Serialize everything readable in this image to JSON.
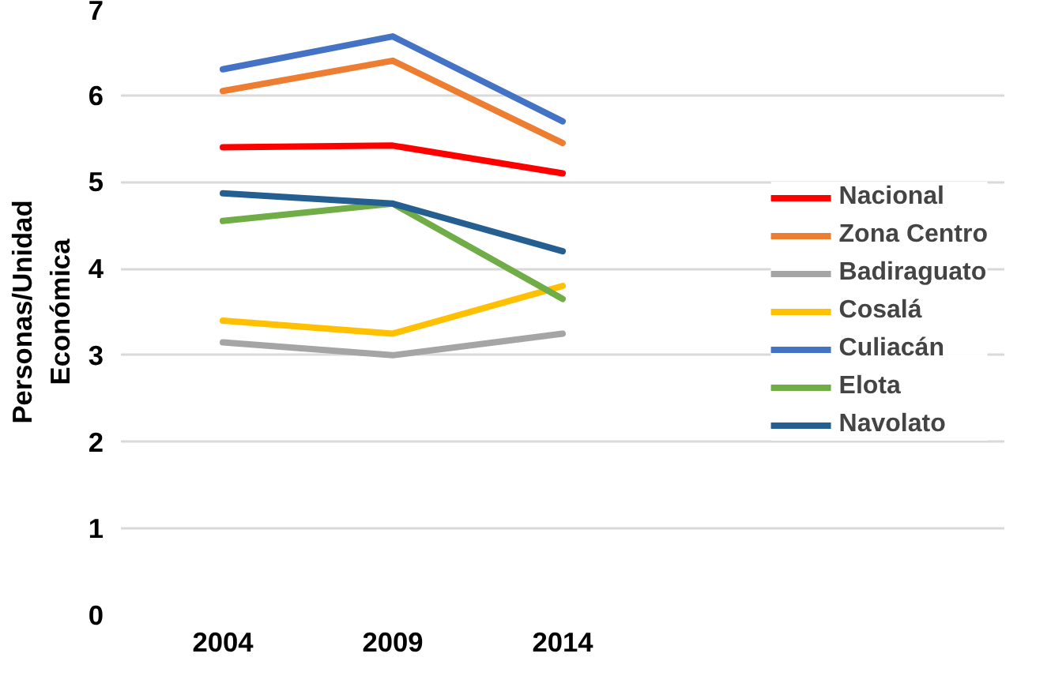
{
  "chart_data": {
    "type": "line",
    "ylabel": "Personas/Unidad\nEconómica",
    "categories": [
      "2004",
      "2009",
      "2014"
    ],
    "ylim": [
      0,
      7
    ],
    "yticks": [
      0,
      1,
      2,
      3,
      4,
      5,
      6,
      7
    ],
    "grid": "y",
    "legend": "right",
    "marker": "none",
    "line_style": "solid",
    "series": [
      {
        "name": "Nacional",
        "color": "#ff0000",
        "values": [
          5.4,
          5.42,
          5.1
        ]
      },
      {
        "name": "Zona Centro",
        "color": "#ed7d31",
        "values": [
          6.05,
          6.4,
          5.45
        ]
      },
      {
        "name": "Badiraguato",
        "color": "#a5a5a5",
        "values": [
          3.15,
          3.0,
          3.25
        ]
      },
      {
        "name": "Cosalá",
        "color": "#ffc000",
        "values": [
          3.4,
          3.25,
          3.8
        ]
      },
      {
        "name": "Culiacán",
        "color": "#4472c4",
        "values": [
          6.3,
          6.68,
          5.7
        ]
      },
      {
        "name": "Elota",
        "color": "#70ad47",
        "values": [
          4.55,
          4.75,
          3.65
        ]
      },
      {
        "name": "Navolato",
        "color": "#255e91",
        "values": [
          4.87,
          4.75,
          4.2
        ]
      }
    ]
  }
}
